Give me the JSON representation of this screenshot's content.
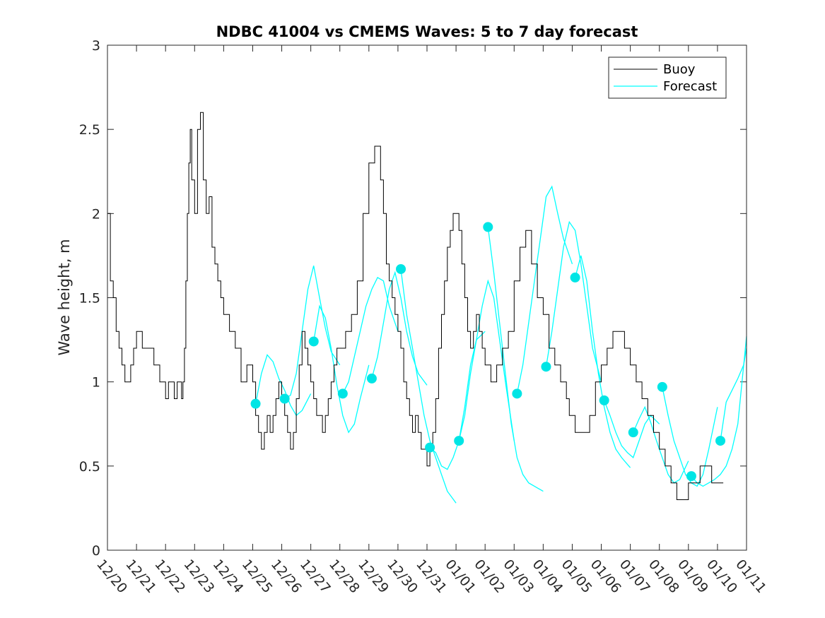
{
  "colors": {
    "buoy": "#000000",
    "forecast": "#00ffff",
    "marker": "#00e5e5"
  },
  "chart_data": {
    "type": "line",
    "title": "NDBC 41004 vs CMEMS Waves: 5 to 7 day forecast",
    "xlabel": "",
    "ylabel": "Wave height, m",
    "ylim": [
      0,
      3
    ],
    "xlim": [
      0,
      22
    ],
    "yticks": [
      "0",
      "0.5",
      "1",
      "1.5",
      "2",
      "2.5",
      "3"
    ],
    "xticks": [
      "12/20",
      "12/21",
      "12/22",
      "12/23",
      "12/24",
      "12/25",
      "12/26",
      "12/27",
      "12/28",
      "12/29",
      "12/30",
      "12/31",
      "01/01",
      "01/02",
      "01/03",
      "01/04",
      "01/05",
      "01/06",
      "01/07",
      "01/08",
      "01/09",
      "01/10",
      "01/11"
    ],
    "legend": {
      "position": "top-right",
      "entries": [
        "Buoy",
        "Forecast"
      ]
    },
    "series": [
      {
        "name": "Buoy",
        "x": [
          0,
          0.1,
          0.2,
          0.3,
          0.4,
          0.5,
          0.6,
          0.7,
          0.8,
          0.9,
          1.0,
          1.2,
          1.4,
          1.6,
          1.8,
          2.0,
          2.1,
          2.2,
          2.3,
          2.4,
          2.5,
          2.55,
          2.6,
          2.65,
          2.7,
          2.75,
          2.8,
          2.85,
          2.9,
          3.0,
          3.1,
          3.2,
          3.3,
          3.4,
          3.5,
          3.6,
          3.7,
          3.8,
          3.9,
          4.0,
          4.2,
          4.4,
          4.6,
          4.8,
          5.0,
          5.1,
          5.2,
          5.3,
          5.4,
          5.5,
          5.6,
          5.7,
          5.8,
          5.9,
          6.0,
          6.1,
          6.2,
          6.3,
          6.4,
          6.5,
          6.6,
          6.7,
          6.8,
          6.9,
          7.0,
          7.1,
          7.2,
          7.3,
          7.4,
          7.5,
          7.6,
          7.7,
          7.8,
          7.9,
          8.0,
          8.2,
          8.4,
          8.6,
          8.8,
          9.0,
          9.2,
          9.4,
          9.5,
          9.6,
          9.7,
          9.8,
          9.9,
          10.0,
          10.1,
          10.2,
          10.3,
          10.4,
          10.5,
          10.6,
          10.7,
          10.8,
          10.9,
          11.0,
          11.1,
          11.2,
          11.3,
          11.4,
          11.5,
          11.6,
          11.7,
          11.8,
          11.9,
          12.0,
          12.1,
          12.2,
          12.3,
          12.4,
          12.5,
          12.6,
          12.7,
          12.8,
          12.9,
          13.0,
          13.2,
          13.4,
          13.6,
          13.8,
          14.0,
          14.2,
          14.4,
          14.6,
          14.8,
          14.9,
          15.0,
          15.2,
          15.4,
          15.6,
          15.8,
          15.9,
          16.0,
          16.1,
          16.2,
          16.3,
          16.4,
          16.6,
          16.8,
          17.0,
          17.2,
          17.4,
          17.6,
          17.8,
          18.0,
          18.2,
          18.4,
          18.6,
          18.8,
          19.0,
          19.2,
          19.4,
          19.6,
          19.8,
          20.0,
          20.2,
          20.4,
          20.6,
          20.8,
          21.0,
          21.2
        ],
        "y": [
          2.0,
          1.6,
          1.5,
          1.3,
          1.2,
          1.1,
          1.0,
          1.0,
          1.1,
          1.2,
          1.3,
          1.2,
          1.2,
          1.1,
          1.0,
          0.9,
          1.0,
          1.0,
          0.9,
          1.0,
          1.0,
          0.9,
          1.0,
          1.2,
          1.6,
          2.0,
          2.3,
          2.5,
          2.2,
          2.0,
          2.5,
          2.6,
          2.2,
          2.0,
          2.1,
          1.8,
          1.7,
          1.6,
          1.5,
          1.4,
          1.3,
          1.2,
          1.0,
          1.1,
          1.0,
          0.8,
          0.7,
          0.6,
          0.7,
          0.8,
          0.7,
          0.8,
          0.9,
          1.0,
          0.9,
          0.8,
          0.7,
          0.6,
          0.7,
          0.9,
          1.1,
          1.3,
          1.2,
          1.1,
          1.0,
          0.9,
          0.8,
          0.8,
          0.7,
          0.8,
          0.9,
          1.0,
          1.1,
          1.2,
          1.2,
          1.3,
          1.4,
          1.6,
          2.0,
          2.3,
          2.4,
          2.2,
          2.0,
          1.7,
          1.6,
          1.5,
          1.4,
          1.3,
          1.2,
          1.0,
          0.9,
          0.8,
          0.7,
          0.8,
          0.7,
          0.6,
          0.6,
          0.5,
          0.6,
          0.7,
          0.9,
          1.2,
          1.4,
          1.6,
          1.8,
          1.9,
          2.0,
          2.0,
          1.9,
          1.7,
          1.5,
          1.3,
          1.2,
          1.3,
          1.4,
          1.3,
          1.2,
          1.1,
          1.0,
          1.1,
          1.2,
          1.3,
          1.6,
          1.8,
          1.9,
          1.7,
          1.5,
          1.5,
          1.4,
          1.2,
          1.1,
          1.0,
          0.9,
          0.8,
          0.8,
          0.7,
          0.7,
          0.7,
          0.7,
          0.8,
          1.0,
          1.1,
          1.2,
          1.3,
          1.3,
          1.2,
          1.1,
          1.0,
          0.9,
          0.8,
          0.7,
          0.6,
          0.5,
          0.4,
          0.3,
          0.3,
          0.4,
          0.4,
          0.5,
          0.5,
          0.4,
          0.4,
          0.4
        ]
      },
      {
        "name": "Forecast",
        "segments": [
          {
            "x": [
              5.1,
              5.3,
              5.5,
              5.7,
              5.9,
              6.1,
              6.3,
              6.5,
              6.7,
              7.0
            ],
            "y": [
              0.87,
              1.05,
              1.16,
              1.12,
              1.02,
              0.95,
              0.86,
              0.8,
              0.83,
              0.93
            ]
          },
          {
            "x": [
              6.1,
              6.3,
              6.5,
              6.7,
              6.9,
              7.1,
              7.3,
              7.5,
              7.7,
              8.0
            ],
            "y": [
              0.9,
              0.92,
              1.05,
              1.3,
              1.55,
              1.69,
              1.5,
              1.32,
              1.18,
              1.1
            ]
          },
          {
            "x": [
              7.1,
              7.3,
              7.5,
              7.7,
              7.9,
              8.1,
              8.3,
              8.5,
              8.7,
              9.0
            ],
            "y": [
              1.24,
              1.45,
              1.38,
              1.2,
              0.98,
              0.8,
              0.7,
              0.75,
              0.9,
              1.1
            ]
          },
          {
            "x": [
              8.1,
              8.3,
              8.5,
              8.7,
              8.9,
              9.1,
              9.3,
              9.5,
              9.7,
              10.0
            ],
            "y": [
              0.93,
              1.0,
              1.15,
              1.3,
              1.45,
              1.55,
              1.62,
              1.6,
              1.45,
              1.3
            ]
          },
          {
            "x": [
              9.1,
              9.3,
              9.5,
              9.7,
              9.9,
              10.1,
              10.3,
              10.5,
              10.7,
              11.0
            ],
            "y": [
              1.02,
              1.15,
              1.35,
              1.55,
              1.65,
              1.5,
              1.3,
              1.15,
              1.05,
              0.98
            ]
          },
          {
            "x": [
              10.1,
              10.3,
              10.5,
              10.7,
              10.9,
              11.1,
              11.3,
              11.5,
              11.7,
              12.0
            ],
            "y": [
              1.67,
              1.4,
              1.2,
              1.0,
              0.8,
              0.65,
              0.55,
              0.45,
              0.35,
              0.28
            ]
          },
          {
            "x": [
              11.1,
              11.3,
              11.5,
              11.7,
              11.9,
              12.1,
              12.3,
              12.5,
              12.7,
              13.0
            ],
            "y": [
              0.61,
              0.58,
              0.5,
              0.48,
              0.55,
              0.65,
              0.85,
              1.1,
              1.25,
              1.3
            ]
          },
          {
            "x": [
              12.1,
              12.3,
              12.5,
              12.7,
              12.9,
              13.1,
              13.3,
              13.5,
              13.7,
              14.0
            ],
            "y": [
              0.65,
              0.8,
              1.05,
              1.25,
              1.45,
              1.6,
              1.5,
              1.25,
              1.0,
              0.65
            ]
          },
          {
            "x": [
              13.1,
              13.3,
              13.5,
              13.7,
              13.9,
              14.1,
              14.3,
              14.5,
              14.7,
              15.0
            ],
            "y": [
              1.92,
              1.65,
              1.35,
              1.05,
              0.75,
              0.55,
              0.45,
              0.4,
              0.38,
              0.35
            ]
          },
          {
            "x": [
              14.1,
              14.3,
              14.5,
              14.7,
              14.9,
              15.1,
              15.3,
              15.5,
              15.7,
              16.0
            ],
            "y": [
              0.93,
              1.1,
              1.35,
              1.6,
              1.85,
              2.1,
              2.16,
              2.0,
              1.85,
              1.7
            ]
          },
          {
            "x": [
              15.1,
              15.3,
              15.5,
              15.7,
              15.9,
              16.1,
              16.3,
              16.5,
              16.7,
              17.0
            ],
            "y": [
              1.09,
              1.3,
              1.55,
              1.8,
              1.95,
              1.9,
              1.7,
              1.45,
              1.2,
              1.0
            ]
          },
          {
            "x": [
              16.1,
              16.3,
              16.5,
              16.7,
              16.9,
              17.1,
              17.3,
              17.5,
              17.7,
              18.0
            ],
            "y": [
              1.62,
              1.75,
              1.6,
              1.3,
              1.05,
              0.85,
              0.7,
              0.6,
              0.55,
              0.49
            ]
          },
          {
            "x": [
              17.1,
              17.3,
              17.5,
              17.7,
              17.9,
              18.1,
              18.3,
              18.5,
              18.7,
              19.0
            ],
            "y": [
              0.89,
              0.8,
              0.7,
              0.62,
              0.58,
              0.55,
              0.65,
              0.75,
              0.8,
              0.75
            ]
          },
          {
            "x": [
              18.1,
              18.3,
              18.5,
              18.7,
              18.9,
              19.1,
              19.3,
              19.5,
              19.7,
              20.0
            ],
            "y": [
              0.7,
              0.78,
              0.85,
              0.76,
              0.65,
              0.55,
              0.45,
              0.4,
              0.42,
              0.53
            ]
          },
          {
            "x": [
              19.1,
              19.3,
              19.5,
              19.7,
              19.9,
              20.1,
              20.3,
              20.5,
              20.7,
              21.0
            ],
            "y": [
              0.97,
              0.8,
              0.65,
              0.55,
              0.45,
              0.4,
              0.38,
              0.45,
              0.6,
              0.85
            ]
          },
          {
            "x": [
              20.1,
              20.3,
              20.5,
              20.7,
              20.9,
              21.1,
              21.3,
              21.5,
              21.7,
              22.0
            ],
            "y": [
              0.44,
              0.4,
              0.38,
              0.4,
              0.42,
              0.45,
              0.5,
              0.6,
              0.75,
              1.27
            ]
          },
          {
            "x": [
              21.1,
              21.3,
              21.5,
              21.7,
              21.9,
              22.0
            ],
            "y": [
              0.65,
              0.88,
              0.95,
              1.02,
              1.1,
              1.2
            ]
          }
        ],
        "markers": {
          "x": [
            5.1,
            6.1,
            7.1,
            8.1,
            9.1,
            10.1,
            11.1,
            12.1,
            13.1,
            14.1,
            15.1,
            16.1,
            17.1,
            18.1,
            19.1,
            20.1,
            21.1
          ],
          "y": [
            0.87,
            0.9,
            1.24,
            0.93,
            1.02,
            1.67,
            0.61,
            0.65,
            1.92,
            0.93,
            1.09,
            1.62,
            0.89,
            0.7,
            0.97,
            0.44,
            0.65
          ]
        }
      }
    ]
  }
}
